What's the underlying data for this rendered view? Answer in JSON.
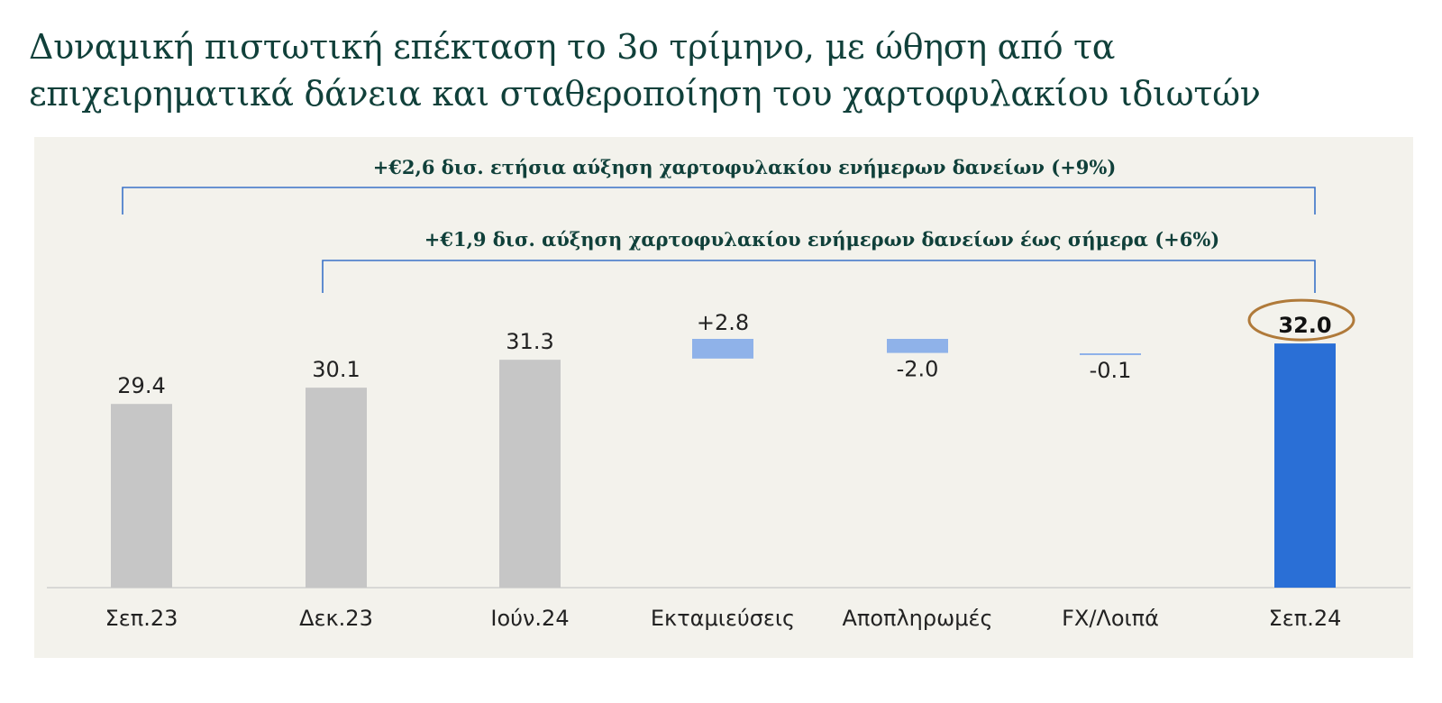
{
  "title": {
    "line1": "Δυναμική πιστωτική επέκταση το 3ο τρίμηνο, με ώθηση από τα",
    "line2": "επιχειρηματικά δάνεια και σταθεροποίηση του χαρτοφυλακίου ιδιωτών"
  },
  "annotations": {
    "yearly": "+€2,6 δισ. ετήσια αύξηση χαρτοφυλακίου ενήμερων δανείων (+9%)",
    "ytd": "+€1,9 δισ. αύξηση χαρτοφυλακίου ενήμερων δανείων έως σήμερα (+6%)"
  },
  "colors": {
    "title": "#10403a",
    "panel": "#f3f2ec",
    "balance_bar": "#c6c6c6",
    "flow_bar": "#8fb2e9",
    "highlight_bar": "#2a6fd6",
    "bracket": "#3a72c8",
    "circle": "#b07a3a"
  },
  "chart_data": {
    "type": "bar",
    "subtype": "waterfall",
    "categories": [
      "Σεπ.23",
      "Δεκ.23",
      "Ιούν.24",
      "Εκταμιεύσεις",
      "Αποπληρωμές",
      "FX/Λοιπά",
      "Σεπ.24"
    ],
    "values": [
      29.4,
      30.1,
      31.3,
      2.8,
      -2.0,
      -0.1,
      32.0
    ],
    "labels": [
      "29.4",
      "30.1",
      "31.3",
      "+2.8",
      "-2.0",
      "-0.1",
      "32.0"
    ],
    "kinds": [
      "total",
      "total",
      "total",
      "delta",
      "delta",
      "delta",
      "total"
    ],
    "highlight": "Σεπ.24"
  }
}
